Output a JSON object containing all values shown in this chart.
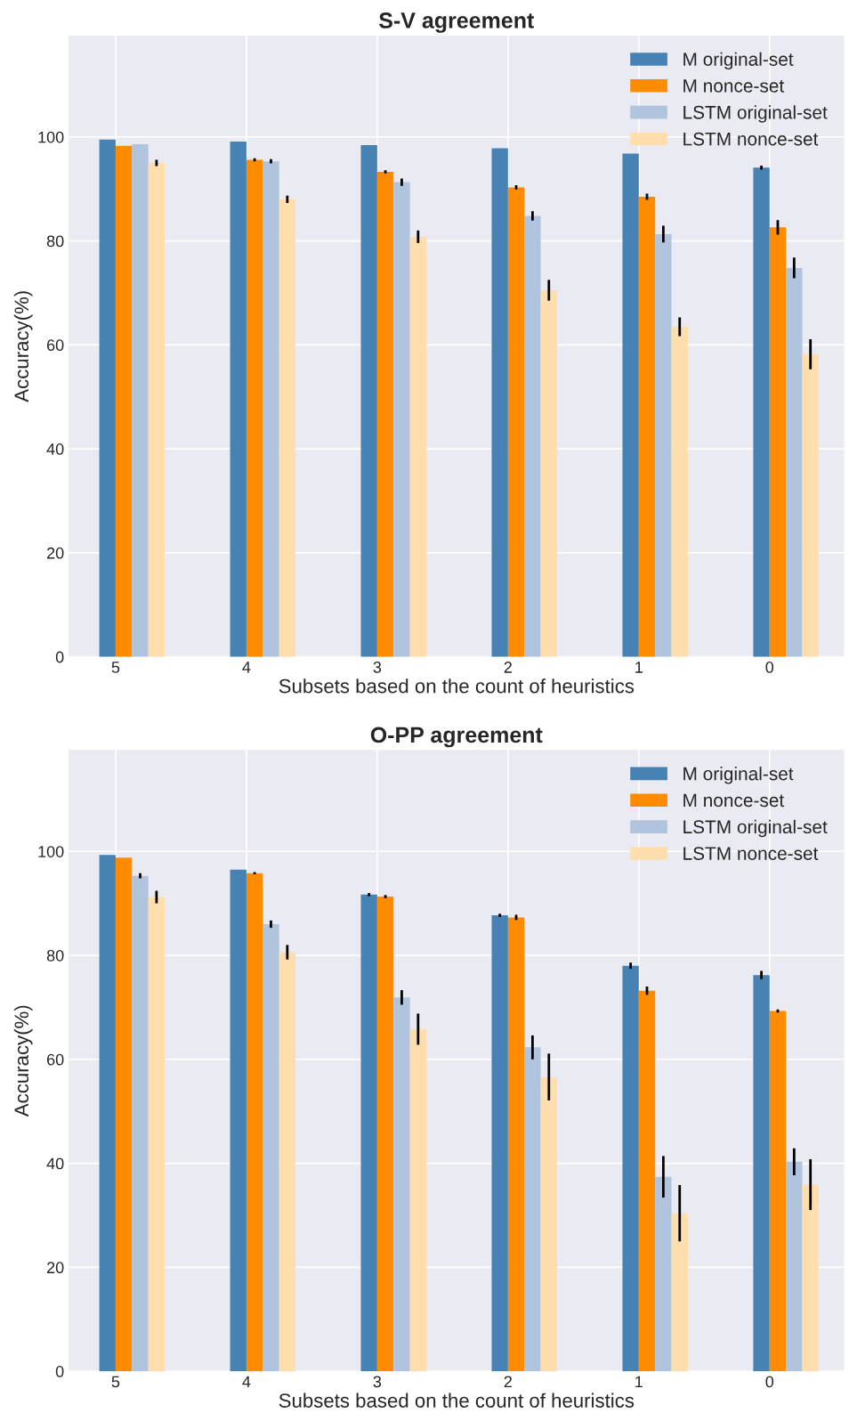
{
  "chart_data": [
    {
      "type": "bar",
      "title": "S-V agreement",
      "xlabel": "Subsets based on the count of heuristics",
      "ylabel": "Accuracy(%)",
      "categories": [
        "5",
        "4",
        "3",
        "2",
        "1",
        "0"
      ],
      "ylim": [
        0,
        119.5
      ],
      "yticks": [
        0,
        20,
        40,
        60,
        80,
        100
      ],
      "grid": true,
      "legend": "top right",
      "series": [
        {
          "name": "M original-set",
          "color": "#4682b4",
          "values": [
            99.5,
            99.1,
            98.4,
            97.8,
            96.8,
            94.1
          ],
          "errors": [
            null,
            null,
            null,
            null,
            null,
            0.4
          ]
        },
        {
          "name": "M nonce-set",
          "color": "#ff8c00",
          "values": [
            98.3,
            95.6,
            93.3,
            90.3,
            88.5,
            82.6
          ],
          "errors": [
            null,
            0.3,
            0.3,
            0.4,
            0.6,
            1.4
          ]
        },
        {
          "name": "LSTM original-set",
          "color": "#b0c4de",
          "values": [
            98.6,
            95.3,
            91.3,
            84.8,
            81.3,
            74.8
          ],
          "errors": [
            null,
            0.4,
            0.7,
            0.9,
            1.6,
            2.0
          ]
        },
        {
          "name": "LSTM nonce-set",
          "color": "#ffdead",
          "values": [
            95.0,
            88.0,
            80.8,
            70.5,
            63.5,
            58.2
          ],
          "errors": [
            0.6,
            0.7,
            1.2,
            2.0,
            1.8,
            2.9
          ]
        }
      ]
    },
    {
      "type": "bar",
      "title": "O-PP agreement",
      "xlabel": "Subsets based on the count of heuristics",
      "ylabel": "Accuracy(%)",
      "categories": [
        "5",
        "4",
        "3",
        "2",
        "1",
        "0"
      ],
      "ylim": [
        0,
        119.5
      ],
      "yticks": [
        0,
        20,
        40,
        60,
        80,
        100
      ],
      "grid": true,
      "legend": "top right",
      "series": [
        {
          "name": "M original-set",
          "color": "#4682b4",
          "values": [
            99.3,
            96.5,
            91.7,
            87.7,
            78.0,
            76.2
          ],
          "errors": [
            null,
            null,
            0.3,
            0.3,
            0.6,
            0.8
          ]
        },
        {
          "name": "M nonce-set",
          "color": "#ff8c00",
          "values": [
            98.8,
            95.8,
            91.3,
            87.3,
            73.2,
            69.3
          ],
          "errors": [
            null,
            0.2,
            0.3,
            0.5,
            0.8,
            0.3
          ]
        },
        {
          "name": "LSTM original-set",
          "color": "#b0c4de",
          "values": [
            95.3,
            86.0,
            71.9,
            62.3,
            37.4,
            40.3
          ],
          "errors": [
            0.5,
            0.7,
            1.4,
            2.3,
            4.0,
            2.6
          ]
        },
        {
          "name": "LSTM nonce-set",
          "color": "#ffdead",
          "values": [
            91.2,
            80.6,
            65.8,
            56.6,
            30.4,
            35.9
          ],
          "errors": [
            1.2,
            1.4,
            3.0,
            4.5,
            5.4,
            4.9
          ]
        }
      ]
    }
  ]
}
